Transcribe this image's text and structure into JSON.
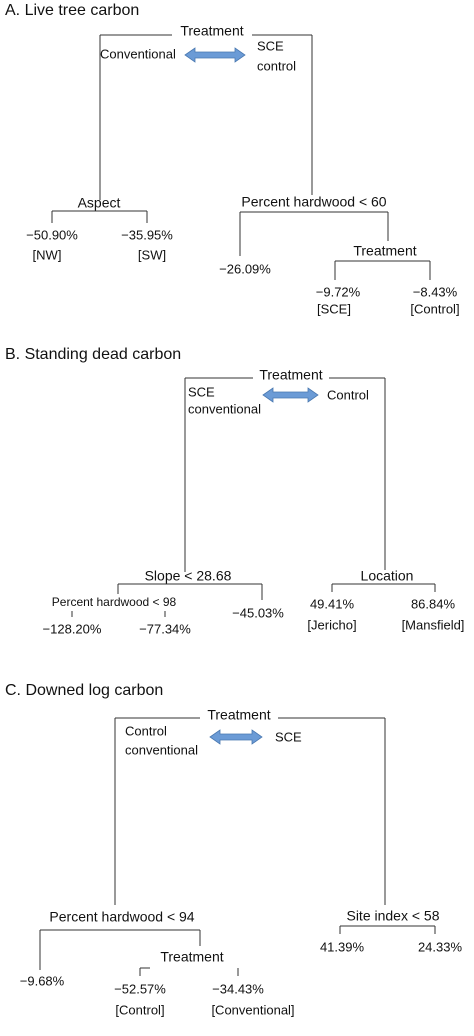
{
  "panels": [
    {
      "title": "A. Live tree carbon",
      "nodes": [
        "Treatment",
        "Aspect",
        "Percent hardwood < 60",
        "Treatment"
      ],
      "groups": {
        "left": [
          "Conventional"
        ],
        "right": [
          "SCE",
          "control"
        ]
      },
      "leaves": [
        {
          "value": "−50.90%",
          "label": "[NW]"
        },
        {
          "value": "−35.95%",
          "label": "[SW]"
        },
        {
          "value": "−26.09%"
        },
        {
          "value": "−9.72%",
          "label": "[SCE]"
        },
        {
          "value": "−8.43%",
          "label": "[Control]"
        }
      ]
    },
    {
      "title": "B. Standing dead carbon",
      "nodes": [
        "Treatment",
        "Slope < 28.68",
        "Percent hardwood < 98",
        "Location"
      ],
      "groups": {
        "left": [
          "SCE",
          "conventional"
        ],
        "right": [
          "Control"
        ]
      },
      "leaves": [
        {
          "value": "−128.20%"
        },
        {
          "value": "−77.34%"
        },
        {
          "value": "−45.03%"
        },
        {
          "value": "49.41%",
          "label": "[Jericho]"
        },
        {
          "value": "86.84%",
          "label": "[Mansfield]"
        }
      ]
    },
    {
      "title": "C. Downed log carbon",
      "nodes": [
        "Treatment",
        "Percent hardwood < 94",
        "Treatment",
        "Site index < 58"
      ],
      "groups": {
        "left": [
          "Control",
          "conventional"
        ],
        "right": [
          "SCE"
        ]
      },
      "leaves": [
        {
          "value": "−9.68%"
        },
        {
          "value": "−52.57%",
          "label": "[Control]"
        },
        {
          "value": "−34.43%",
          "label": "[Conventional]"
        },
        {
          "value": "41.39%"
        },
        {
          "value": "24.33%"
        }
      ]
    }
  ]
}
